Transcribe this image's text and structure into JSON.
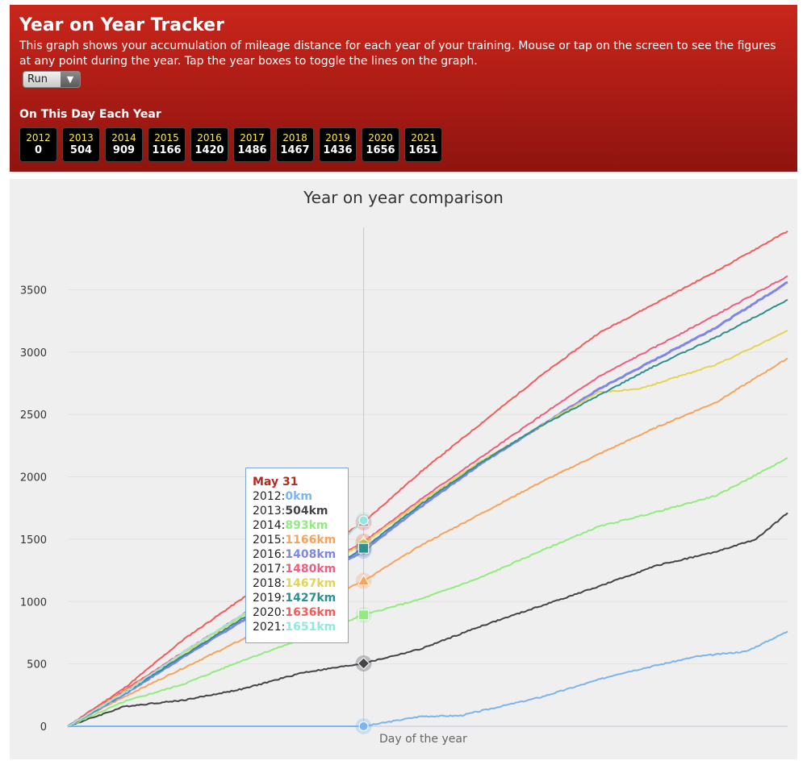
{
  "header": {
    "title": "Year on Year Tracker",
    "description": "This graph shows your accumulation of mileage distance for each year of your training. Mouse or tap on the screen to see the figures at any point during the year. Tap the year boxes to toggle the lines on the graph.",
    "activity_select": "Run",
    "on_this_day_title": "On This Day Each Year"
  },
  "year_boxes": [
    {
      "year": "2012",
      "value": "0"
    },
    {
      "year": "2013",
      "value": "504"
    },
    {
      "year": "2014",
      "value": "909"
    },
    {
      "year": "2015",
      "value": "1166"
    },
    {
      "year": "2016",
      "value": "1420"
    },
    {
      "year": "2017",
      "value": "1486"
    },
    {
      "year": "2018",
      "value": "1467"
    },
    {
      "year": "2019",
      "value": "1436"
    },
    {
      "year": "2020",
      "value": "1656"
    },
    {
      "year": "2021",
      "value": "1651"
    }
  ],
  "tooltip": {
    "date": "May 31",
    "rows": [
      {
        "year": "2012",
        "value": "0km",
        "color": "#7cb5ec"
      },
      {
        "year": "2013",
        "value": "504km",
        "color": "#434348"
      },
      {
        "year": "2014",
        "value": "893km",
        "color": "#90ed7d"
      },
      {
        "year": "2015",
        "value": "1166km",
        "color": "#f7a35c"
      },
      {
        "year": "2016",
        "value": "1408km",
        "color": "#8085e9"
      },
      {
        "year": "2017",
        "value": "1480km",
        "color": "#f15c80"
      },
      {
        "year": "2018",
        "value": "1467km",
        "color": "#e4d354"
      },
      {
        "year": "2019",
        "value": "1427km",
        "color": "#2b908f"
      },
      {
        "year": "2020",
        "value": "1636km",
        "color": "#f45b5b"
      },
      {
        "year": "2021",
        "value": "1651km",
        "color": "#91e8e1"
      }
    ]
  },
  "chart_data": {
    "type": "line",
    "title": "Year on year comparison",
    "xlabel": "Day of the year",
    "ylabel": "",
    "x_unit": "day of year",
    "xlim": [
      1,
      366
    ],
    "ylim": [
      0,
      4000
    ],
    "yticks": [
      0,
      500,
      1000,
      1500,
      2000,
      2500,
      3000,
      3500
    ],
    "grid": true,
    "legend": "none",
    "crosshair_day": 151,
    "series": [
      {
        "year": "2012",
        "color": "#7cb5ec",
        "points": [
          [
            1,
            0
          ],
          [
            151,
            0
          ],
          [
            180,
            80
          ],
          [
            200,
            85
          ],
          [
            240,
            230
          ],
          [
            280,
            420
          ],
          [
            320,
            560
          ],
          [
            345,
            600
          ],
          [
            366,
            760
          ]
        ]
      },
      {
        "year": "2013",
        "color": "#434348",
        "points": [
          [
            1,
            0
          ],
          [
            30,
            160
          ],
          [
            60,
            210
          ],
          [
            90,
            300
          ],
          [
            120,
            430
          ],
          [
            151,
            504
          ],
          [
            180,
            620
          ],
          [
            210,
            800
          ],
          [
            240,
            960
          ],
          [
            270,
            1120
          ],
          [
            300,
            1290
          ],
          [
            330,
            1400
          ],
          [
            350,
            1500
          ],
          [
            366,
            1710
          ]
        ]
      },
      {
        "year": "2014",
        "color": "#90ed7d",
        "points": [
          [
            1,
            0
          ],
          [
            30,
            200
          ],
          [
            60,
            340
          ],
          [
            90,
            530
          ],
          [
            120,
            700
          ],
          [
            151,
            893
          ],
          [
            180,
            1020
          ],
          [
            210,
            1190
          ],
          [
            240,
            1400
          ],
          [
            270,
            1600
          ],
          [
            300,
            1720
          ],
          [
            330,
            1850
          ],
          [
            366,
            2150
          ]
        ]
      },
      {
        "year": "2015",
        "color": "#f7a35c",
        "points": [
          [
            1,
            0
          ],
          [
            30,
            240
          ],
          [
            60,
            470
          ],
          [
            90,
            700
          ],
          [
            120,
            930
          ],
          [
            151,
            1166
          ],
          [
            180,
            1450
          ],
          [
            210,
            1700
          ],
          [
            240,
            1950
          ],
          [
            270,
            2180
          ],
          [
            300,
            2400
          ],
          [
            330,
            2600
          ],
          [
            366,
            2950
          ]
        ]
      },
      {
        "year": "2016",
        "color": "#8085e9",
        "points": [
          [
            1,
            0
          ],
          [
            30,
            260
          ],
          [
            60,
            560
          ],
          [
            90,
            850
          ],
          [
            120,
            1120
          ],
          [
            151,
            1408
          ],
          [
            180,
            1760
          ],
          [
            210,
            2100
          ],
          [
            240,
            2400
          ],
          [
            270,
            2700
          ],
          [
            300,
            2950
          ],
          [
            330,
            3200
          ],
          [
            366,
            3560
          ]
        ]
      },
      {
        "year": "2017",
        "color": "#f15c80",
        "points": [
          [
            1,
            0
          ],
          [
            30,
            290
          ],
          [
            60,
            600
          ],
          [
            90,
            900
          ],
          [
            120,
            1190
          ],
          [
            151,
            1480
          ],
          [
            180,
            1820
          ],
          [
            210,
            2150
          ],
          [
            240,
            2480
          ],
          [
            270,
            2800
          ],
          [
            300,
            3050
          ],
          [
            330,
            3300
          ],
          [
            366,
            3610
          ]
        ]
      },
      {
        "year": "2018",
        "color": "#e4d354",
        "points": [
          [
            1,
            0
          ],
          [
            30,
            280
          ],
          [
            60,
            590
          ],
          [
            90,
            890
          ],
          [
            120,
            1180
          ],
          [
            151,
            1467
          ],
          [
            180,
            1800
          ],
          [
            210,
            2120
          ],
          [
            240,
            2400
          ],
          [
            270,
            2680
          ],
          [
            290,
            2700
          ],
          [
            330,
            2900
          ],
          [
            366,
            3170
          ]
        ]
      },
      {
        "year": "2019",
        "color": "#2b908f",
        "points": [
          [
            1,
            0
          ],
          [
            30,
            270
          ],
          [
            60,
            570
          ],
          [
            90,
            870
          ],
          [
            120,
            1150
          ],
          [
            151,
            1427
          ],
          [
            180,
            1780
          ],
          [
            210,
            2110
          ],
          [
            240,
            2400
          ],
          [
            270,
            2650
          ],
          [
            300,
            2900
          ],
          [
            330,
            3120
          ],
          [
            366,
            3420
          ]
        ]
      },
      {
        "year": "2020",
        "color": "#f45b5b",
        "points": [
          [
            1,
            0
          ],
          [
            30,
            310
          ],
          [
            60,
            700
          ],
          [
            90,
            1030
          ],
          [
            120,
            1330
          ],
          [
            151,
            1636
          ],
          [
            180,
            2040
          ],
          [
            210,
            2420
          ],
          [
            240,
            2800
          ],
          [
            270,
            3150
          ],
          [
            300,
            3400
          ],
          [
            330,
            3650
          ],
          [
            366,
            3970
          ]
        ]
      },
      {
        "year": "2021",
        "color": "#91e8e1",
        "points": [
          [
            1,
            0
          ],
          [
            30,
            270
          ],
          [
            60,
            600
          ],
          [
            90,
            900
          ],
          [
            120,
            1200
          ],
          [
            151,
            1651
          ]
        ]
      }
    ]
  }
}
